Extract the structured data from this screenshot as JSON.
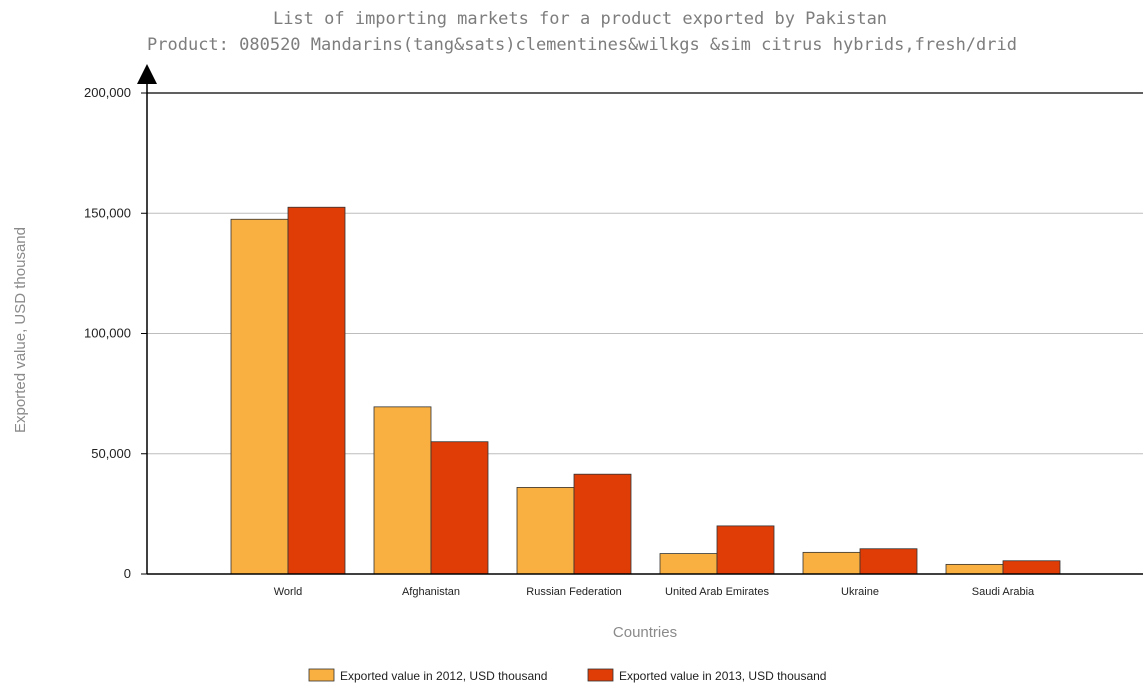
{
  "chart_data": {
    "type": "bar",
    "title": "List of importing markets for a product exported by Pakistan",
    "subtitle": "Product: 080520 Mandarins(tang&sats)clementines&wilkgs &sim citrus hybrids,fresh/drid",
    "xlabel": "Countries",
    "ylabel": "Exported value, USD thousand",
    "ylim": [
      0,
      200000
    ],
    "yticks": [
      0,
      50000,
      100000,
      150000,
      200000
    ],
    "ytick_labels": [
      "0",
      "50,000",
      "100,000",
      "150,000",
      "200,000"
    ],
    "grid": true,
    "legend_position": "bottom",
    "categories": [
      "World",
      "Afghanistan",
      "Russian Federation",
      "United Arab Emirates",
      "Ukraine",
      "Saudi Arabia"
    ],
    "series": [
      {
        "name": "Exported value in 2012, USD thousand",
        "color": "#f9b040",
        "values": [
          147500,
          69500,
          36000,
          8500,
          9000,
          4000
        ]
      },
      {
        "name": "Exported value in 2013, USD thousand",
        "color": "#e03c06",
        "values": [
          152500,
          55000,
          41500,
          20000,
          10500,
          5500
        ]
      }
    ]
  }
}
